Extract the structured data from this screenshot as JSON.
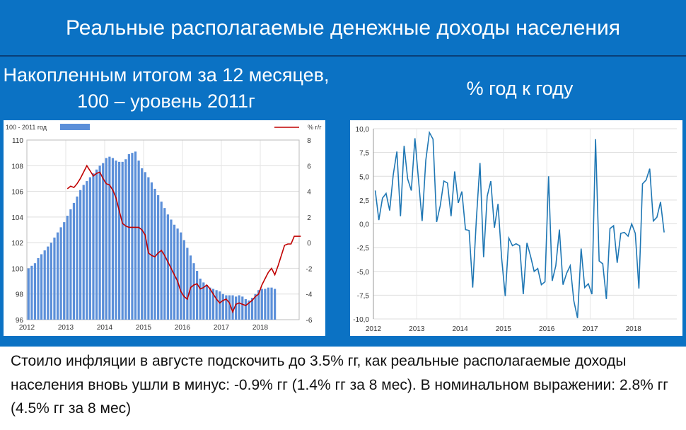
{
  "header": {
    "title": "Реальные располагаемые денежные доходы населения",
    "left_subtitle": "Накопленным итогом за 12 месяцев, 100 – уровень 2011г",
    "right_subtitle": "% год к году"
  },
  "footer": {
    "text": "Стоило инфляции в августе подскочить до 3.5% гг, как реальные располагаемые доходы населения вновь ушли в минус: -0.9% гг (1.4% гг за 8 мес). В номинальном выражении: 2.8% гг (4.5% гг за 8 мес)"
  },
  "colors": {
    "banner": "#0b72c4",
    "bars": "#5b8fd9",
    "red_line": "#c00000",
    "blue_line": "#1f77b4"
  },
  "chart_data": [
    {
      "type": "bar",
      "legend": [
        "100 - 2011 год",
        "% г/г"
      ],
      "legend_position": "top",
      "x_tick_labels": [
        "2012",
        "2013",
        "2014",
        "2015",
        "2016",
        "2017",
        "2018"
      ],
      "y_left": {
        "range": [
          96,
          110
        ],
        "ticks": [
          "96",
          "98",
          "100",
          "102",
          "104",
          "106",
          "108",
          "110"
        ]
      },
      "y_right": {
        "range": [
          -6,
          8
        ],
        "ticks": [
          "-6",
          "-4",
          "-2",
          "0",
          "2",
          "4",
          "6",
          "8"
        ]
      },
      "grid": true,
      "bar_series": {
        "name": "100 - 2011 год",
        "start": "2012-01",
        "values": [
          100.0,
          100.2,
          100.4,
          100.8,
          101.1,
          101.4,
          101.7,
          102.0,
          102.4,
          102.8,
          103.2,
          103.6,
          104.1,
          104.6,
          105.1,
          105.6,
          106.1,
          106.5,
          106.8,
          107.1,
          107.4,
          107.7,
          108.0,
          108.2,
          108.6,
          108.7,
          108.6,
          108.4,
          108.3,
          108.3,
          108.5,
          108.9,
          109.0,
          109.1,
          108.4,
          107.8,
          107.5,
          107.1,
          106.7,
          106.2,
          105.7,
          105.2,
          104.7,
          104.2,
          103.8,
          103.4,
          103.1,
          102.8,
          102.2,
          101.6,
          101.0,
          100.4,
          99.8,
          99.2,
          98.9,
          98.7,
          98.5,
          98.4,
          98.3,
          98.2,
          98.0,
          97.9,
          97.9,
          97.9,
          97.8,
          97.9,
          97.8,
          97.6,
          97.5,
          97.7,
          98.0,
          98.3,
          98.4,
          98.4,
          98.5,
          98.5,
          98.4
        ]
      },
      "line_series": {
        "name": "% г/г",
        "start": "2013-01",
        "values": [
          4.2,
          4.4,
          4.3,
          4.6,
          5.0,
          5.5,
          6.0,
          5.6,
          5.2,
          5.4,
          5.5,
          5.0,
          4.6,
          4.5,
          4.1,
          3.5,
          2.5,
          1.5,
          1.3,
          1.2,
          1.2,
          1.2,
          1.2,
          1.0,
          0.6,
          -0.8,
          -1.0,
          -1.1,
          -0.8,
          -0.6,
          -1.0,
          -1.5,
          -2.0,
          -2.5,
          -3.0,
          -3.8,
          -4.2,
          -4.4,
          -3.5,
          -3.3,
          -3.2,
          -3.6,
          -3.5,
          -3.3,
          -3.6,
          -4.0,
          -4.4,
          -4.7,
          -4.5,
          -4.4,
          -4.7,
          -5.4,
          -4.8,
          -4.7,
          -4.8,
          -4.9,
          -4.7,
          -4.5,
          -4.2,
          -4.0,
          -3.3,
          -2.8,
          -2.3,
          -2.0,
          -2.5,
          -1.8,
          -1.0,
          -0.2,
          -0.1,
          -0.1,
          0.5,
          0.5,
          0.5
        ]
      }
    },
    {
      "type": "line",
      "x_tick_labels": [
        "2012",
        "2013",
        "2014",
        "2015",
        "2016",
        "2017",
        "2018"
      ],
      "y_range": [
        -10,
        10
      ],
      "y_ticks": [
        "10,0",
        "7,5",
        "5,0",
        "2,5",
        "0,0",
        "-2,5",
        "-5,0",
        "-7,5",
        "-10,0"
      ],
      "grid": true,
      "series": [
        {
          "start": "2012-01",
          "values": [
            3.5,
            0.4,
            2.7,
            3.2,
            1.4,
            5.2,
            7.6,
            0.8,
            8.2,
            4.7,
            3.5,
            9.0,
            4.6,
            0.3,
            6.7,
            9.6,
            8.9,
            0.2,
            1.9,
            4.5,
            4.3,
            0.8,
            5.5,
            2.2,
            3.4,
            -0.6,
            -0.7,
            -6.7,
            0.5,
            6.4,
            -3.5,
            2.9,
            4.5,
            -0.4,
            2.1,
            -3.6,
            -7.6,
            -1.5,
            -2.3,
            -2.1,
            -2.3,
            -7.4,
            -2.0,
            -3.4,
            -5.0,
            -4.7,
            -6.4,
            -6.1,
            5.0,
            -6.0,
            -4.4,
            -0.6,
            -6.4,
            -5.2,
            -4.4,
            -8.1,
            -9.9,
            -2.6,
            -6.7,
            -6.3,
            -7.4,
            8.9,
            -3.9,
            -4.2,
            -7.9,
            -0.5,
            -0.2,
            -4.1,
            -1.0,
            -0.9,
            -1.3,
            0.0,
            -1.0,
            -6.8,
            4.2,
            4.6,
            5.8,
            0.3,
            0.7,
            2.3,
            -0.9
          ]
        }
      ]
    }
  ]
}
